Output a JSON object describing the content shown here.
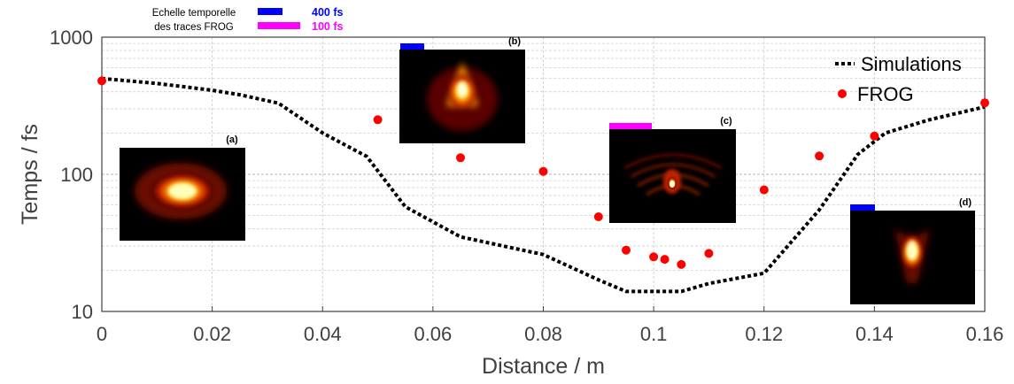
{
  "chart_data": {
    "type": "line",
    "xlabel": "Distance / m",
    "ylabel": "Temps / fs",
    "xlim": [
      0,
      0.16
    ],
    "ylim": [
      10,
      1000
    ],
    "yscale": "log",
    "x_ticks": [
      0,
      0.02,
      0.04,
      0.06,
      0.08,
      0.1,
      0.12,
      0.14,
      0.16
    ],
    "x_tick_labels": [
      "0",
      "0.02",
      "0.04",
      "0.06",
      "0.08",
      "0.1",
      "0.12",
      "0.14",
      "0.16"
    ],
    "y_ticks": [
      10,
      100,
      1000
    ],
    "y_tick_labels": [
      "10",
      "100",
      "1000"
    ],
    "grid": "horizontal minor and major lines, vertical major lines",
    "legend_position": "top-right",
    "series": [
      {
        "name": "Simulations",
        "style": "dotted line",
        "color": "#000000",
        "x": [
          0,
          0.01,
          0.02,
          0.025,
          0.032,
          0.04,
          0.048,
          0.055,
          0.065,
          0.08,
          0.09,
          0.095,
          0.1,
          0.105,
          0.11,
          0.12,
          0.13,
          0.137,
          0.142,
          0.15,
          0.16
        ],
        "y": [
          500,
          460,
          410,
          380,
          330,
          200,
          135,
          58,
          35,
          26,
          17,
          14,
          14,
          14,
          16,
          19,
          55,
          140,
          200,
          250,
          310
        ]
      },
      {
        "name": "FROG",
        "style": "markers",
        "color": "#ff0000",
        "x": [
          0,
          0.05,
          0.065,
          0.08,
          0.09,
          0.095,
          0.1,
          0.102,
          0.105,
          0.11,
          0.12,
          0.13,
          0.14,
          0.16
        ],
        "y": [
          480,
          250,
          132,
          105,
          49,
          28,
          25,
          24,
          22,
          26.5,
          77,
          136,
          190,
          332
        ]
      }
    ],
    "temporal_scale_legend": {
      "title_line1": "Echelle temporelle",
      "title_line2": "des traces FROG",
      "items": [
        {
          "label": "400 fs",
          "color": "#0000ff"
        },
        {
          "label": "100 fs",
          "color": "#ff00ff"
        }
      ]
    },
    "insets": [
      {
        "label": "(a)",
        "scale_color": "#0000ff"
      },
      {
        "label": "(b)",
        "scale_color": "#0000ff"
      },
      {
        "label": "(c)",
        "scale_color": "#ff00ff"
      },
      {
        "label": "(d)",
        "scale_color": "#0000ff"
      }
    ]
  }
}
